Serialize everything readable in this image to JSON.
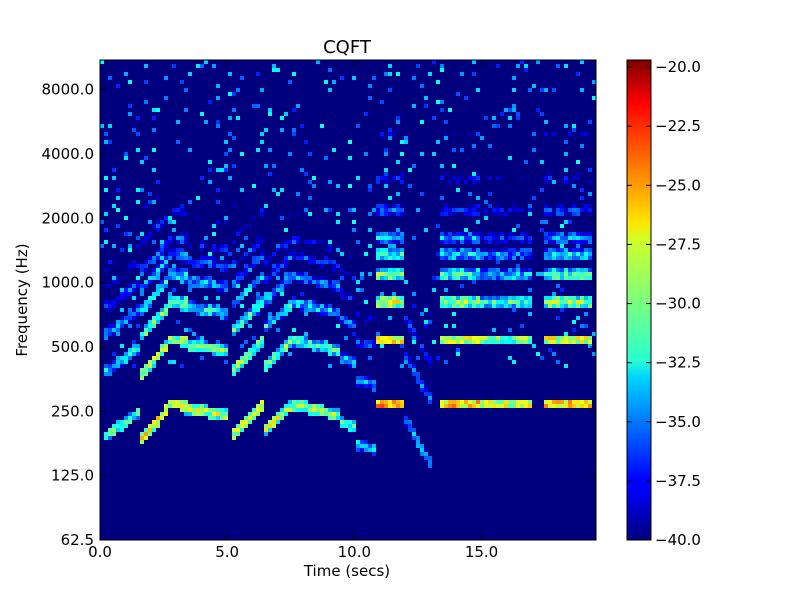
{
  "chart_data": {
    "type": "heatmap",
    "title": "CQFT",
    "xlabel": "Time (secs)",
    "ylabel": "Frequency (Hz)",
    "xlim": [
      0.0,
      19.5
    ],
    "xticks": [
      0.0,
      5.0,
      10.0,
      15.0
    ],
    "xtick_labels": [
      "0.0",
      "5.0",
      "10.0",
      "15.0"
    ],
    "ylim_hz": [
      62.5,
      11000
    ],
    "yscale": "log2",
    "yticks": [
      62.5,
      125.0,
      250.0,
      500.0,
      1000.0,
      2000.0,
      4000.0,
      8000.0
    ],
    "ytick_labels": [
      "62.5",
      "125.0",
      "250.0",
      "500.0",
      "1000.0",
      "2000.0",
      "4000.0",
      "8000.0"
    ],
    "colorbar": {
      "range": [
        -40.0,
        -19.7
      ],
      "ticks": [
        -20.0,
        -22.5,
        -25.0,
        -27.5,
        -30.0,
        -32.5,
        -35.0,
        -37.5,
        -40.0
      ],
      "tick_labels": [
        "−20.0",
        "−22.5",
        "−25.0",
        "−27.5",
        "−30.0",
        "−32.5",
        "−35.0",
        "−37.5",
        "−40.0"
      ],
      "colormap": "jet"
    },
    "noise_floor_db": -40.0,
    "notes": [
      {
        "t": [
          0.2,
          1.6
        ],
        "f_start": 190,
        "f_end": 250,
        "db": -28
      },
      {
        "t": [
          1.6,
          2.6
        ],
        "f_start": 185,
        "f_end": 250,
        "db": -24
      },
      {
        "t": [
          2.6,
          3.4
        ],
        "f_start": 270,
        "f_end": 270,
        "db": -25
      },
      {
        "t": [
          3.2,
          5.0
        ],
        "f_start": 260,
        "f_end": 240,
        "db": -26
      },
      {
        "t": [
          5.2,
          6.4
        ],
        "f_start": 195,
        "f_end": 270,
        "db": -25
      },
      {
        "t": [
          6.5,
          7.6
        ],
        "f_start": 205,
        "f_end": 270,
        "db": -26
      },
      {
        "t": [
          7.5,
          9.4
        ],
        "f_start": 270,
        "f_end": 240,
        "db": -27
      },
      {
        "t": [
          9.4,
          10.0
        ],
        "f_start": 225,
        "f_end": 210,
        "db": -29
      },
      {
        "t": [
          10.1,
          10.9
        ],
        "f_start": 175,
        "f_end": 165,
        "db": -30
      },
      {
        "t": [
          10.9,
          12.0
        ],
        "f_start": 270,
        "f_end": 270,
        "db": -22
      },
      {
        "t": [
          12.0,
          13.1
        ],
        "f_start": 230,
        "f_end": 135,
        "db": -31
      },
      {
        "t": [
          13.3,
          15.0
        ],
        "f_start": 270,
        "f_end": 270,
        "db": -23
      },
      {
        "t": [
          15.0,
          17.0
        ],
        "f_start": 270,
        "f_end": 270,
        "db": -25
      },
      {
        "t": [
          17.4,
          19.4
        ],
        "f_start": 270,
        "f_end": 270,
        "db": -23
      }
    ]
  }
}
